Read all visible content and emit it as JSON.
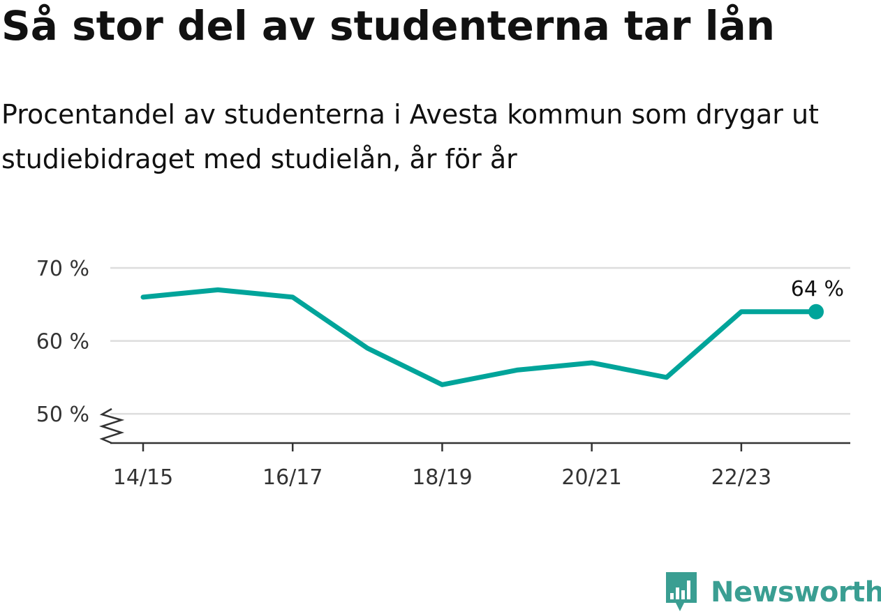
{
  "header": {
    "title": "Så stor del av studenterna tar lån",
    "subtitle": "Procentandel av studenterna i Avesta kommun som drygar ut studiebidraget med studielån, år för år"
  },
  "brand": {
    "name": "Newsworthy",
    "logo_icon": "bar-chart-speech-bubble-icon",
    "color": "#3a9e92"
  },
  "chart_data": {
    "type": "line",
    "x": [
      "14/15",
      "15/16",
      "16/17",
      "17/18",
      "18/19",
      "19/20",
      "20/21",
      "21/22",
      "22/23",
      "23/24"
    ],
    "series": [
      {
        "values": [
          66,
          67,
          66,
          59,
          54,
          56,
          57,
          55,
          64,
          64
        ],
        "color": "#00a49a"
      }
    ],
    "x_tick_labels": [
      "14/15",
      "16/17",
      "18/19",
      "20/21",
      "22/23"
    ],
    "y_ticks": [
      {
        "value": 50,
        "label": "50 %"
      },
      {
        "value": 60,
        "label": "60 %"
      },
      {
        "value": 70,
        "label": "70 %"
      }
    ],
    "ylim": [
      46,
      70
    ],
    "y_axis_break": true,
    "end_label": "64 %",
    "grid": true,
    "xlabel": "",
    "ylabel": "",
    "title": "Så stor del av studenterna tar lån"
  }
}
